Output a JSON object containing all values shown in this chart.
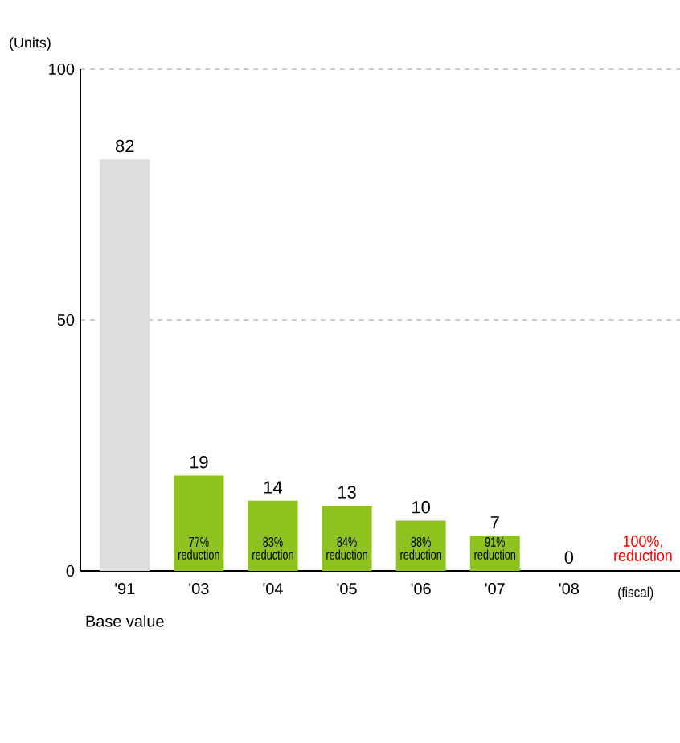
{
  "chart_data": {
    "type": "bar",
    "ylabel": "(Units)",
    "xlabel": "(fiscal)",
    "categories": [
      "'91",
      "'03",
      "'04",
      "'05",
      "'06",
      "'07",
      "'08"
    ],
    "values": [
      82,
      19,
      14,
      13,
      10,
      7,
      0
    ],
    "colors": [
      "#dcdddd",
      "#8dc21f",
      "#8dc21f",
      "#8dc21f",
      "#8dc21f",
      "#8dc21f",
      "#8dc21f"
    ],
    "ylim": [
      0,
      100
    ],
    "yticks": [
      0,
      50,
      100
    ],
    "grid": "y",
    "data_labels": true,
    "annotations": [
      "Base value",
      "77% reduction",
      "83% reduction",
      "84% reduction",
      "88% reduction",
      "91% reduction",
      "100%, reduction"
    ]
  }
}
